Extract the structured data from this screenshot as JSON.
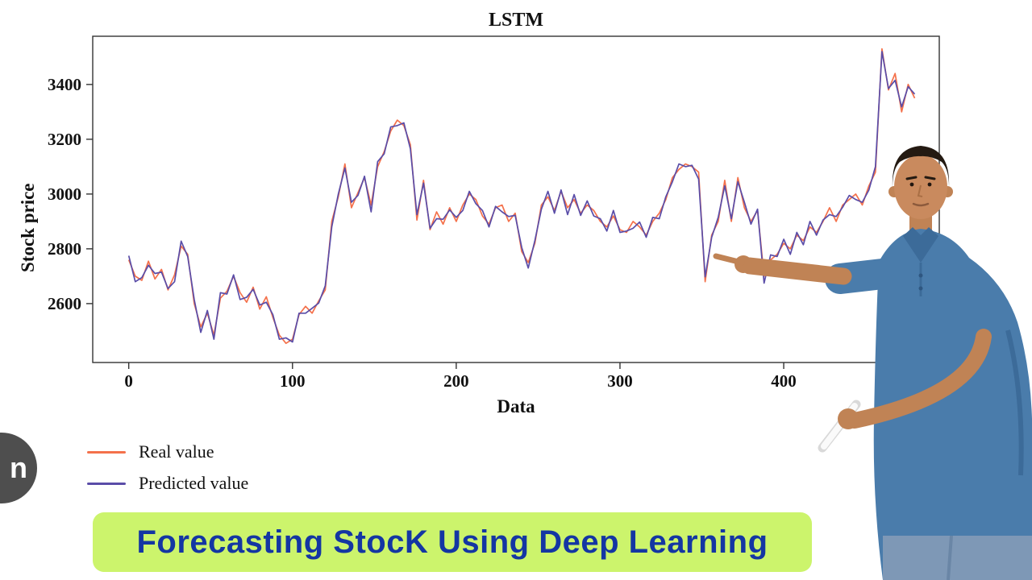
{
  "video": {
    "caption": "Forecasting StocK Using Deep Learning",
    "caption_bg": "#ccf46c",
    "caption_color": "#1436a3"
  },
  "watermark": {
    "label": "n"
  },
  "chart_data": {
    "type": "line",
    "title": "LSTM",
    "xlabel": "Data",
    "ylabel": "Stock price",
    "xlim": [
      -22,
      495
    ],
    "ylim": [
      2385,
      3576
    ],
    "xticks": [
      0,
      100,
      200,
      300,
      400
    ],
    "yticks": [
      2600,
      2800,
      3000,
      3200,
      3400
    ],
    "grid": false,
    "legend_position": "below-left",
    "x": [
      0,
      4,
      8,
      12,
      16,
      20,
      24,
      28,
      32,
      36,
      40,
      44,
      48,
      52,
      56,
      60,
      64,
      68,
      72,
      76,
      80,
      84,
      88,
      92,
      96,
      100,
      104,
      108,
      112,
      116,
      120,
      124,
      128,
      132,
      136,
      140,
      144,
      148,
      152,
      156,
      160,
      164,
      168,
      172,
      176,
      180,
      184,
      188,
      192,
      196,
      200,
      204,
      208,
      212,
      216,
      220,
      224,
      228,
      232,
      236,
      240,
      244,
      248,
      252,
      256,
      260,
      264,
      268,
      272,
      276,
      280,
      284,
      288,
      292,
      296,
      300,
      304,
      308,
      312,
      316,
      320,
      324,
      328,
      332,
      336,
      340,
      344,
      348,
      352,
      356,
      360,
      364,
      368,
      372,
      376,
      380,
      384,
      388,
      392,
      396,
      400,
      404,
      408,
      412,
      416,
      420,
      424,
      428,
      432,
      436,
      440,
      444,
      448,
      452,
      456,
      460,
      464,
      468,
      472,
      476,
      480
    ],
    "series": [
      {
        "name": "Real value",
        "color": "#f4714b",
        "values": [
          2760,
          2700,
          2685,
          2755,
          2690,
          2725,
          2650,
          2705,
          2810,
          2780,
          2600,
          2515,
          2565,
          2485,
          2620,
          2645,
          2700,
          2640,
          2605,
          2660,
          2580,
          2625,
          2550,
          2485,
          2455,
          2470,
          2560,
          2590,
          2565,
          2610,
          2650,
          2900,
          2990,
          3110,
          2950,
          3005,
          3060,
          2960,
          3100,
          3155,
          3230,
          3270,
          3250,
          3180,
          2905,
          3050,
          2870,
          2935,
          2890,
          2950,
          2900,
          2960,
          3000,
          2980,
          2920,
          2890,
          2950,
          2960,
          2900,
          2930,
          2790,
          2750,
          2820,
          2960,
          2990,
          2940,
          3010,
          2950,
          2980,
          2930,
          2960,
          2940,
          2900,
          2880,
          2920,
          2870,
          2860,
          2900,
          2880,
          2850,
          2900,
          2930,
          2980,
          3060,
          3090,
          3110,
          3100,
          3080,
          2680,
          2850,
          2900,
          3050,
          2900,
          3060,
          2950,
          2900,
          2940,
          2700,
          2760,
          2780,
          2820,
          2800,
          2850,
          2830,
          2880,
          2860,
          2900,
          2950,
          2900,
          2960,
          2980,
          3000,
          2960,
          3030,
          3080,
          3530,
          3380,
          3440,
          3300,
          3400,
          3350
        ]
      },
      {
        "name": "Predicted value",
        "color": "#5a4da8",
        "values": [
          2775,
          2680,
          2695,
          2740,
          2710,
          2715,
          2655,
          2680,
          2828,
          2772,
          2615,
          2495,
          2575,
          2470,
          2640,
          2635,
          2705,
          2615,
          2623,
          2652,
          2595,
          2605,
          2560,
          2470,
          2475,
          2460,
          2565,
          2565,
          2583,
          2602,
          2665,
          2880,
          3000,
          3095,
          2970,
          2995,
          3065,
          2935,
          3118,
          3147,
          3245,
          3250,
          3260,
          3165,
          2925,
          3040,
          2875,
          2910,
          2908,
          2942,
          2915,
          2940,
          3010,
          2965,
          2940,
          2880,
          2955,
          2935,
          2918,
          2922,
          2805,
          2730,
          2830,
          2945,
          3010,
          2930,
          3015,
          2925,
          2998,
          2922,
          2975,
          2920,
          2910,
          2865,
          2940,
          2860,
          2865,
          2875,
          2898,
          2842,
          2915,
          2910,
          2990,
          3045,
          3110,
          3100,
          3105,
          3055,
          2698,
          2842,
          2915,
          3030,
          2910,
          3045,
          2970,
          2890,
          2945,
          2675,
          2778,
          2772,
          2835,
          2780,
          2860,
          2815,
          2900,
          2850,
          2905,
          2925,
          2918,
          2952,
          2995,
          2980,
          2970,
          3015,
          3100,
          3520,
          3385,
          3415,
          3318,
          3392,
          3365
        ]
      }
    ]
  }
}
